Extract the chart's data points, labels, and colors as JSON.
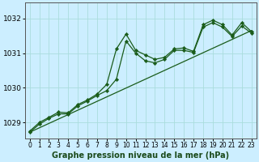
{
  "title": "Graphe pression niveau de la mer (hPa)",
  "bg_color": "#cceeff",
  "plot_bg_color": "#cceeff",
  "grid_color": "#aadddd",
  "line_color": "#1a5c1a",
  "marker_color": "#1a5c1a",
  "xlim": [
    -0.5,
    23.5
  ],
  "ylim": [
    1028.55,
    1032.45
  ],
  "yticks": [
    1029,
    1030,
    1031,
    1032
  ],
  "xticks": [
    0,
    1,
    2,
    3,
    4,
    5,
    6,
    7,
    8,
    9,
    10,
    11,
    12,
    13,
    14,
    15,
    16,
    17,
    18,
    19,
    20,
    21,
    22,
    23
  ],
  "series1": [
    [
      0,
      1028.75
    ],
    [
      1,
      1029.0
    ],
    [
      2,
      1029.15
    ],
    [
      3,
      1029.3
    ],
    [
      4,
      1029.28
    ],
    [
      5,
      1029.52
    ],
    [
      6,
      1029.65
    ],
    [
      7,
      1029.82
    ],
    [
      8,
      1030.1
    ],
    [
      9,
      1031.12
    ],
    [
      10,
      1031.55
    ],
    [
      11,
      1031.08
    ],
    [
      12,
      1030.95
    ],
    [
      13,
      1030.82
    ],
    [
      14,
      1030.88
    ],
    [
      15,
      1031.12
    ],
    [
      16,
      1031.15
    ],
    [
      17,
      1031.05
    ],
    [
      18,
      1031.82
    ],
    [
      19,
      1031.95
    ],
    [
      20,
      1031.82
    ],
    [
      21,
      1031.52
    ],
    [
      22,
      1031.88
    ],
    [
      23,
      1031.62
    ]
  ],
  "series2": [
    [
      0,
      1028.72
    ],
    [
      1,
      1028.95
    ],
    [
      2,
      1029.12
    ],
    [
      3,
      1029.25
    ],
    [
      4,
      1029.25
    ],
    [
      5,
      1029.48
    ],
    [
      6,
      1029.62
    ],
    [
      7,
      1029.78
    ],
    [
      8,
      1029.92
    ],
    [
      9,
      1030.25
    ],
    [
      10,
      1031.35
    ],
    [
      11,
      1031.0
    ],
    [
      12,
      1030.78
    ],
    [
      13,
      1030.72
    ],
    [
      14,
      1030.82
    ],
    [
      15,
      1031.08
    ],
    [
      16,
      1031.08
    ],
    [
      17,
      1031.02
    ],
    [
      18,
      1031.75
    ],
    [
      19,
      1031.88
    ],
    [
      20,
      1031.75
    ],
    [
      21,
      1031.48
    ],
    [
      22,
      1031.78
    ],
    [
      23,
      1031.58
    ]
  ],
  "trend_x": [
    0,
    23
  ],
  "trend_y": [
    1028.72,
    1031.65
  ],
  "xlabel_color": "#1a4a1a",
  "xlabel_fontsize": 7,
  "tick_fontsize": 5.5,
  "ytick_fontsize": 6.5,
  "linewidth": 0.9,
  "markersize": 2.2
}
